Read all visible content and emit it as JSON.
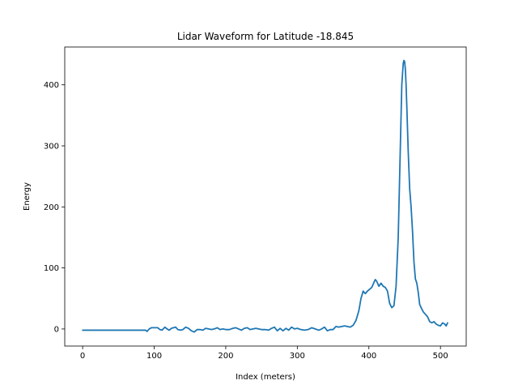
{
  "chart_data": {
    "type": "line",
    "title": "Lidar Waveform for Latitude -18.845",
    "xlabel": "Index (meters)",
    "ylabel": "Energy",
    "xlim": [
      -25,
      536
    ],
    "ylim": [
      -28,
      462
    ],
    "xticks": [
      0,
      100,
      200,
      300,
      400,
      500
    ],
    "yticks": [
      0,
      100,
      200,
      300,
      400
    ],
    "grid": false,
    "series": [
      {
        "color": "#1f77b4",
        "x": [
          0,
          10,
          20,
          30,
          40,
          50,
          60,
          70,
          80,
          88,
          90,
          93,
          96,
          100,
          105,
          108,
          111,
          115,
          118,
          121,
          124,
          127,
          130,
          133,
          137,
          140,
          144,
          148,
          152,
          156,
          160,
          164,
          168,
          172,
          176,
          180,
          184,
          188,
          192,
          196,
          200,
          205,
          210,
          214,
          218,
          222,
          226,
          230,
          234,
          238,
          242,
          246,
          250,
          255,
          260,
          264,
          268,
          272,
          276,
          280,
          284,
          288,
          292,
          296,
          300,
          305,
          310,
          315,
          320,
          325,
          330,
          334,
          338,
          342,
          346,
          350,
          354,
          358,
          362,
          366,
          370,
          374,
          378,
          382,
          386,
          389,
          392,
          395,
          398,
          401,
          404,
          407,
          409,
          411,
          414,
          417,
          420,
          423,
          426,
          429,
          432,
          435,
          438,
          441,
          444,
          446,
          448,
          449,
          450,
          451,
          452,
          453,
          455,
          457,
          459,
          461,
          463,
          465,
          467,
          469,
          471,
          473,
          476,
          479,
          482,
          485,
          488,
          491,
          494,
          497,
          500,
          503,
          506,
          508,
          510
        ],
        "y": [
          -2,
          -2,
          -2,
          -2,
          -2,
          -2,
          -2,
          -2,
          -2,
          -2,
          -4,
          0,
          2,
          2,
          2,
          -1,
          -2,
          3,
          0,
          -2,
          1,
          2,
          3,
          -1,
          -2,
          -1,
          3,
          1,
          -3,
          -5,
          -1,
          -1,
          -2,
          1,
          0,
          -1,
          0,
          2,
          -1,
          0,
          -1,
          -1,
          1,
          2,
          0,
          -2,
          1,
          2,
          -1,
          0,
          1,
          0,
          -1,
          -1,
          -2,
          1,
          3,
          -3,
          1,
          -3,
          1,
          -2,
          3,
          0,
          1,
          -1,
          -2,
          -1,
          2,
          0,
          -2,
          0,
          3,
          -3,
          -1,
          -1,
          4,
          3,
          4,
          5,
          4,
          3,
          6,
          14,
          30,
          50,
          62,
          58,
          62,
          65,
          68,
          76,
          81,
          78,
          70,
          75,
          70,
          68,
          62,
          42,
          35,
          38,
          70,
          150,
          300,
          400,
          435,
          440,
          438,
          425,
          400,
          365,
          290,
          230,
          200,
          160,
          110,
          82,
          75,
          60,
          40,
          35,
          28,
          24,
          20,
          12,
          10,
          12,
          8,
          6,
          5,
          10,
          8,
          5,
          10
        ]
      }
    ]
  }
}
